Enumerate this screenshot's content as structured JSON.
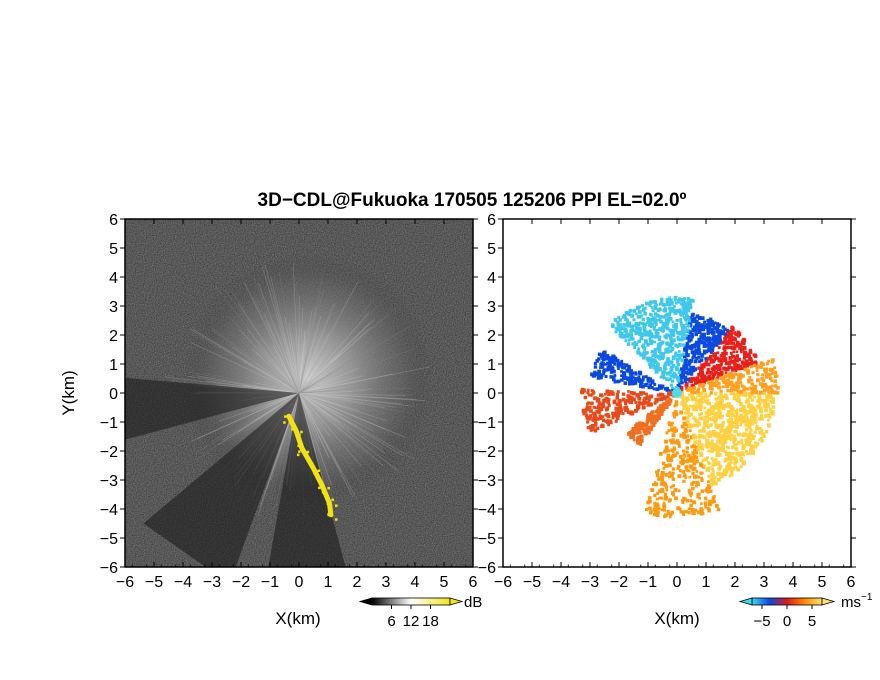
{
  "chart_data": {
    "type": "heatmap",
    "title": "3D−CDL@Fukuoka 170505 125206 PPI EL=02.0º",
    "panels": [
      {
        "name": "reflectivity",
        "xlabel": "X(km)",
        "ylabel": "Y(km)",
        "xlim": [
          -6,
          6
        ],
        "ylim": [
          -6,
          6
        ],
        "xticks": [
          "−6",
          "−5",
          "−4",
          "−3",
          "−2",
          "−1",
          "0",
          "1",
          "2",
          "3",
          "4",
          "5",
          "6"
        ],
        "yticks": [
          "6",
          "5",
          "4",
          "3",
          "2",
          "1",
          "0",
          "−1",
          "−2",
          "−3",
          "−4",
          "−5",
          "−6"
        ],
        "colorbar": {
          "unit": "dB",
          "ticks": [
            "6",
            "12",
            "18"
          ],
          "tick_values": [
            6,
            12,
            18
          ],
          "range": [
            0,
            24
          ],
          "colors": [
            "#000000",
            "#ffffff",
            "#f5e41a"
          ]
        },
        "background_color": "#2a2a2a",
        "echo_color": "#f2e214",
        "features": {
          "clutter_lobe": {
            "center": [
              0.3,
              0.5
            ],
            "radius": 4.3,
            "level_db": 10
          },
          "shadow_sectors_deg": [
            [
              175,
              195
            ],
            [
              220,
              250
            ],
            [
              260,
              285
            ]
          ],
          "yellow_band": [
            [
              -0.35,
              -0.8
            ],
            [
              -0.1,
              -1.3
            ],
            [
              0.1,
              -1.9
            ],
            [
              0.5,
              -2.6
            ],
            [
              0.8,
              -3.2
            ],
            [
              1.05,
              -3.8
            ],
            [
              1.1,
              -4.2
            ]
          ]
        }
      },
      {
        "name": "doppler_velocity",
        "xlabel": "X(km)",
        "ylabel": "",
        "xlim": [
          -6,
          6
        ],
        "ylim": [
          -6,
          6
        ],
        "xticks": [
          "−6",
          "−5",
          "−4",
          "−3",
          "−2",
          "−1",
          "0",
          "1",
          "2",
          "3",
          "4",
          "5",
          "6"
        ],
        "colorbar": {
          "unit": "ms",
          "unit_exponent": "−1",
          "ticks": [
            "−5",
            "0",
            "5"
          ],
          "tick_values": [
            -5,
            0,
            5
          ],
          "range": [
            -7,
            7
          ],
          "colors": [
            "#3fd7ee",
            "#0a4adf",
            "#d81c1c",
            "#ff8a00",
            "#ffe070"
          ]
        },
        "features": {
          "sectors": [
            {
              "from_deg": 20,
              "to_deg": 50,
              "r_max": 3.0,
              "velocity": 0.5,
              "color": "#e8201c"
            },
            {
              "from_deg": 50,
              "to_deg": 80,
              "r_max": 2.8,
              "velocity": -3.0,
              "color": "#0a4adf"
            },
            {
              "from_deg": 80,
              "to_deg": 135,
              "r_max": 3.3,
              "velocity": -5.5,
              "color": "#3fc8ec"
            },
            {
              "from_deg": 150,
              "to_deg": 170,
              "r_max": 3.0,
              "velocity": -3.0,
              "color": "#0a48e0"
            },
            {
              "from_deg": 178,
              "to_deg": 205,
              "r_max": 3.3,
              "velocity": 2.0,
              "color": "#e84a1a"
            },
            {
              "from_deg": 218,
              "to_deg": 235,
              "r_max": 2.2,
              "velocity": 3.0,
              "color": "#f07020"
            },
            {
              "from_deg": 255,
              "to_deg": 290,
              "r_max": 4.3,
              "velocity": 4.0,
              "color": "#ff9a10"
            },
            {
              "from_deg": 290,
              "to_deg": 360,
              "r_max": 3.4,
              "velocity": 5.5,
              "color": "#ffd040"
            },
            {
              "from_deg": 0,
              "to_deg": 20,
              "r_max": 3.5,
              "velocity": 4.5,
              "color": "#ffa020"
            }
          ]
        }
      }
    ]
  }
}
